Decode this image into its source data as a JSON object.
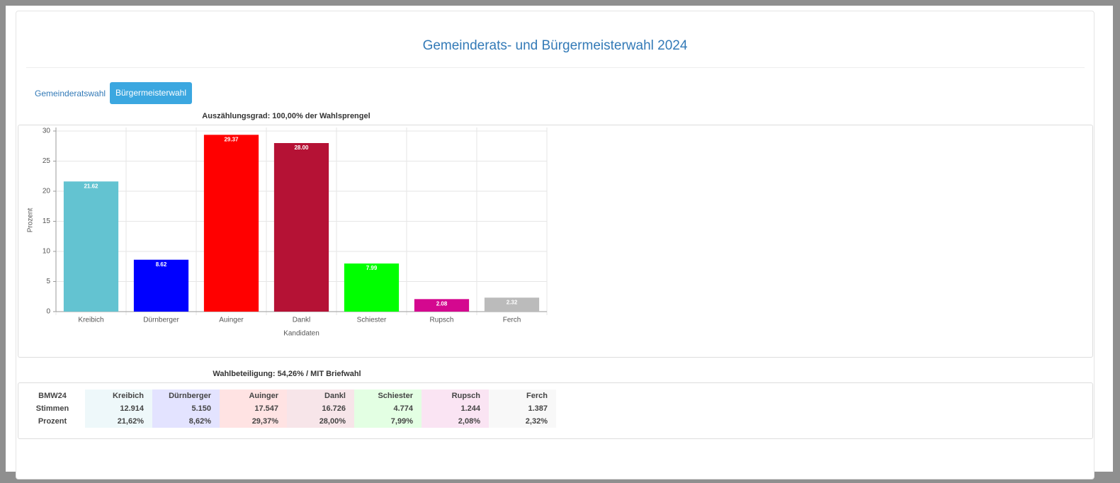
{
  "header": {
    "title": "Gemeinderats- und Bürgermeisterwahl 2024"
  },
  "tabs": [
    "Gemeinderatswahl",
    "Bürgermeisterwahl"
  ],
  "chart_data": {
    "type": "bar",
    "title": "Auszählungsgrad: 100,00% der Wahlsprengel",
    "y_label": "Prozent",
    "x_label": "Kandidaten",
    "categories": [
      "Kreibich",
      "Dürnberger",
      "Auinger",
      "Dankl",
      "Schiester",
      "Rupsch",
      "Ferch"
    ],
    "values": [
      21.62,
      8.62,
      29.37,
      28.0,
      7.99,
      2.08,
      2.32
    ],
    "value_labels": [
      "21.62",
      "8.62",
      "29.37",
      "28.00",
      "7.99",
      "2.08",
      "2.32"
    ],
    "colors": [
      "#63c3d1",
      "#0000ff",
      "#ff0000",
      "#b51235",
      "#00ff00",
      "#d4088f",
      "#bbbbbb"
    ],
    "ylim": [
      0,
      30
    ],
    "yticks": [
      0,
      5,
      10,
      15,
      20,
      25,
      30
    ],
    "grid": true
  },
  "table": {
    "title": "Wahlbeteiligung: 54,26% / MIT Briefwahl",
    "header": [
      "BMW24",
      "Kreibich",
      "Dürnberger",
      "Auinger",
      "Dankl",
      "Schiester",
      "Rupsch",
      "Ferch"
    ],
    "rows": [
      [
        "Stimmen",
        "12.914",
        "5.150",
        "17.547",
        "16.726",
        "4.774",
        "1.244",
        "1.387"
      ],
      [
        "Prozent",
        "21,62%",
        "8,62%",
        "29,37%",
        "28,00%",
        "7,99%",
        "2,08%",
        "2,32%"
      ]
    ]
  }
}
